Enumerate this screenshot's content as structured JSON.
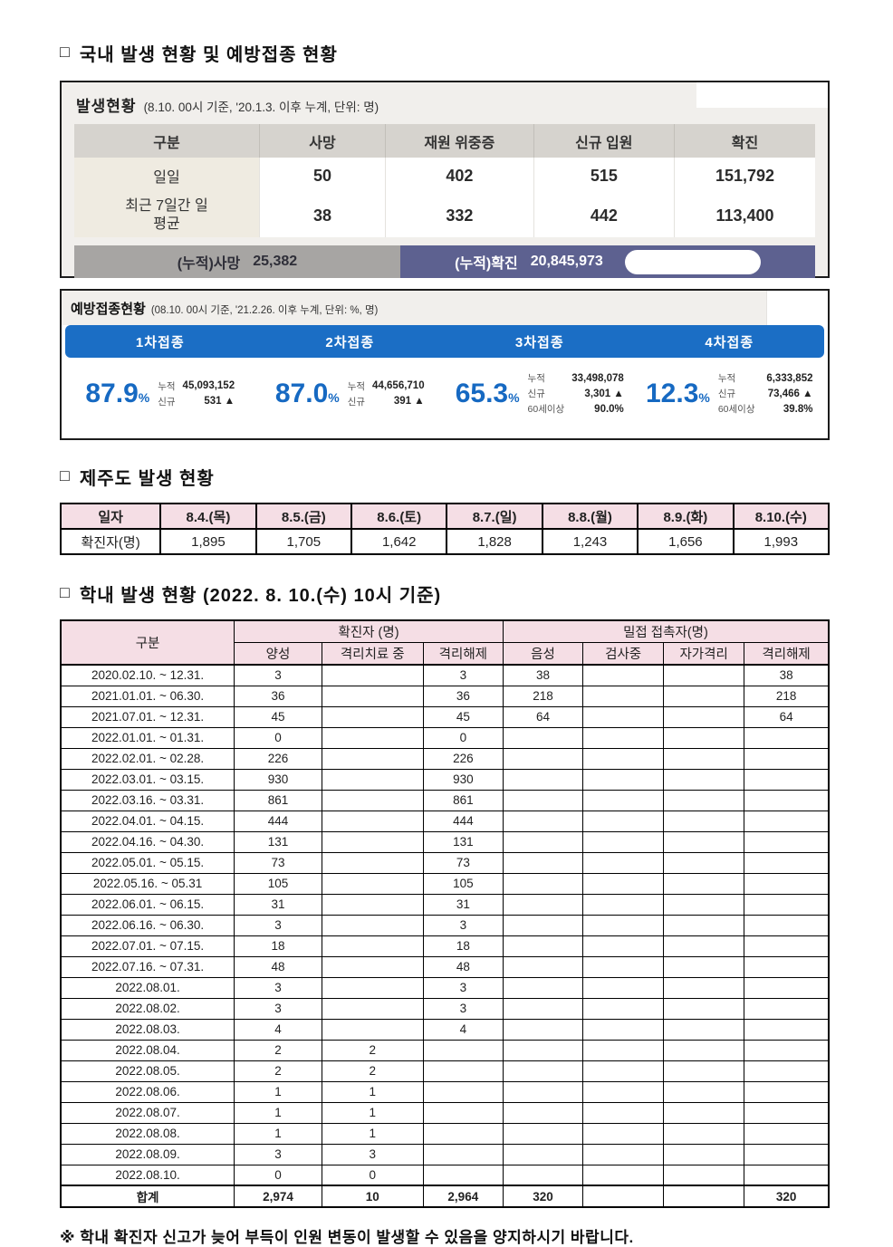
{
  "icons": {
    "checkbox": "□",
    "footnote_mark": "※"
  },
  "sections": {
    "national_title": "국내 발생 현황 및 예방접종 현황",
    "jeju_title": "제주도 발생 현황",
    "school_title": "학내 발생 현황 (2022. 8. 10.(수) 10시 기준)"
  },
  "occurrence": {
    "label": "발생현황",
    "note": "(8.10. 00시 기준, '20.1.3. 이후 누계, 단위: 명)",
    "headers": [
      "구분",
      "사망",
      "재원 위중증",
      "신규 입원",
      "확진"
    ],
    "rows": [
      {
        "label": "일일",
        "values": [
          "50",
          "402",
          "515",
          "151,792"
        ]
      },
      {
        "label": "최근 7일간 일평균",
        "values": [
          "38",
          "332",
          "442",
          "113,400"
        ]
      }
    ],
    "cumulative_death_label": "(누적)사망",
    "cumulative_death_value": "25,382",
    "cumulative_confirmed_label": "(누적)확진",
    "cumulative_confirmed_value": "20,845,973"
  },
  "vaccination": {
    "label": "예방접종현황",
    "note": "(08.10. 00시 기준, '21.2.26. 이후 누계, 단위: %, 명)",
    "doses": [
      {
        "title": "1차접종",
        "percent": "87.9",
        "unit": "%",
        "stats_rows": [
          [
            "누적",
            "45,093,152"
          ],
          [
            "신규",
            "531 ▲"
          ]
        ]
      },
      {
        "title": "2차접종",
        "percent": "87.0",
        "unit": "%",
        "stats_rows": [
          [
            "누적",
            "44,656,710"
          ],
          [
            "신규",
            "391 ▲"
          ]
        ]
      },
      {
        "title": "3차접종",
        "percent": "65.3",
        "unit": "%",
        "stats_rows": [
          [
            "누적",
            "33,498,078"
          ],
          [
            "신규",
            "3,301 ▲"
          ],
          [
            "60세이상",
            "90.0%"
          ]
        ]
      },
      {
        "title": "4차접종",
        "percent": "12.3",
        "unit": "%",
        "stats_rows": [
          [
            "누적",
            "6,333,852"
          ],
          [
            "신규",
            "73,466 ▲"
          ],
          [
            "60세이상",
            "39.8%"
          ]
        ]
      }
    ]
  },
  "jeju": {
    "headers": [
      "일자",
      "8.4.(목)",
      "8.5.(금)",
      "8.6.(토)",
      "8.7.(일)",
      "8.8.(월)",
      "8.9.(화)",
      "8.10.(수)"
    ],
    "row_label": "확진자(명)",
    "values": [
      "1,895",
      "1,705",
      "1,642",
      "1,828",
      "1,243",
      "1,656",
      "1,993"
    ]
  },
  "school": {
    "col_label": "구분",
    "group_headers": [
      "확진자 (명)",
      "밀접 접촉자(명)"
    ],
    "sub_headers": [
      "양성",
      "격리치료 중",
      "격리해제",
      "음성",
      "검사중",
      "자가격리",
      "격리해제"
    ],
    "rows": [
      [
        "2020.02.10.  ~  12.31.",
        "3",
        "",
        "3",
        "38",
        "",
        "",
        "38"
      ],
      [
        "2021.01.01.  ~  06.30.",
        "36",
        "",
        "36",
        "218",
        "",
        "",
        "218"
      ],
      [
        "2021.07.01.  ~  12.31.",
        "45",
        "",
        "45",
        "64",
        "",
        "",
        "64"
      ],
      [
        "2022.01.01.  ~  01.31.",
        "0",
        "",
        "0",
        "",
        "",
        "",
        ""
      ],
      [
        "2022.02.01.  ~  02.28.",
        "226",
        "",
        "226",
        "",
        "",
        "",
        ""
      ],
      [
        "2022.03.01.  ~  03.15.",
        "930",
        "",
        "930",
        "",
        "",
        "",
        ""
      ],
      [
        "2022.03.16.  ~  03.31.",
        "861",
        "",
        "861",
        "",
        "",
        "",
        ""
      ],
      [
        "2022.04.01.  ~  04.15.",
        "444",
        "",
        "444",
        "",
        "",
        "",
        ""
      ],
      [
        "2022.04.16.  ~  04.30.",
        "131",
        "",
        "131",
        "",
        "",
        "",
        ""
      ],
      [
        "2022.05.01.  ~  05.15.",
        "73",
        "",
        "73",
        "",
        "",
        "",
        ""
      ],
      [
        "2022.05.16.  ~  05.31",
        "105",
        "",
        "105",
        "",
        "",
        "",
        ""
      ],
      [
        "2022.06.01.  ~  06.15.",
        "31",
        "",
        "31",
        "",
        "",
        "",
        ""
      ],
      [
        "2022.06.16.  ~  06.30.",
        "3",
        "",
        "3",
        "",
        "",
        "",
        ""
      ],
      [
        "2022.07.01.  ~  07.15.",
        "18",
        "",
        "18",
        "",
        "",
        "",
        ""
      ],
      [
        "2022.07.16.  ~  07.31.",
        "48",
        "",
        "48",
        "",
        "",
        "",
        ""
      ],
      [
        "2022.08.01.",
        "3",
        "",
        "3",
        "",
        "",
        "",
        ""
      ],
      [
        "2022.08.02.",
        "3",
        "",
        "3",
        "",
        "",
        "",
        ""
      ],
      [
        "2022.08.03.",
        "4",
        "",
        "4",
        "",
        "",
        "",
        ""
      ],
      [
        "2022.08.04.",
        "2",
        "2",
        "",
        "",
        "",
        "",
        ""
      ],
      [
        "2022.08.05.",
        "2",
        "2",
        "",
        "",
        "",
        "",
        ""
      ],
      [
        "2022.08.06.",
        "1",
        "1",
        "",
        "",
        "",
        "",
        ""
      ],
      [
        "2022.08.07.",
        "1",
        "1",
        "",
        "",
        "",
        "",
        ""
      ],
      [
        "2022.08.08.",
        "1",
        "1",
        "",
        "",
        "",
        "",
        ""
      ],
      [
        "2022.08.09.",
        "3",
        "3",
        "",
        "",
        "",
        "",
        ""
      ],
      [
        "2022.08.10.",
        "0",
        "0",
        "",
        "",
        "",
        "",
        ""
      ]
    ],
    "total_row": [
      "합계",
      "2,974",
      "10",
      "2,964",
      "320",
      "",
      "",
      "320"
    ]
  },
  "footnote": "학내 확진자 신고가 늦어 부득이 인원 변동이 발생할 수 있음을 양지하시기 바랍니다.",
  "colors": {
    "accent_blue": "#1b6ec5",
    "percent_blue": "#1669c2",
    "cumulative_death_bg": "#a7a5a3",
    "cumulative_confirmed_bg": "#5d6190",
    "pink_header": "#f5dee5",
    "box_bg": "#f1efec",
    "table_header_gray": "#d6d3ce",
    "category_beige": "#efebe1"
  }
}
